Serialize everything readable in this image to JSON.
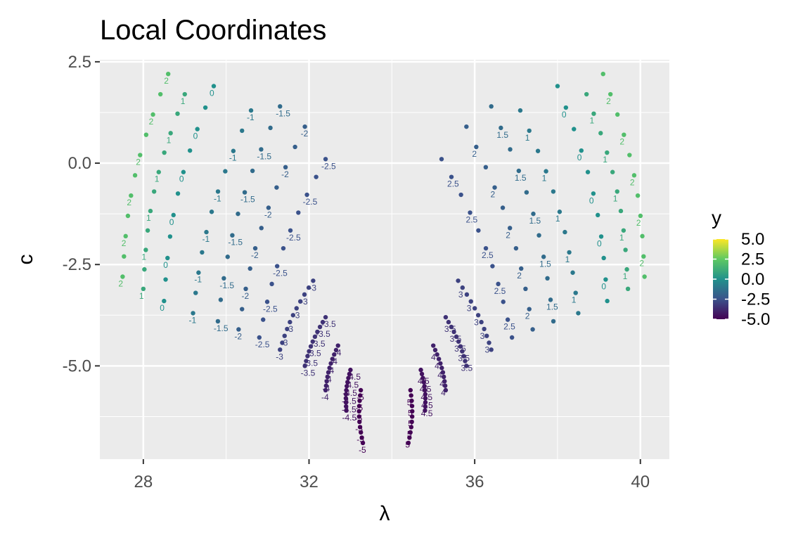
{
  "chart_data": {
    "type": "scatter",
    "title": "Local Coordinates",
    "xlabel": "λ",
    "ylabel": "c",
    "xlim": [
      26.95,
      40.7
    ],
    "ylim": [
      -7.3,
      2.55
    ],
    "x_ticks": [
      28,
      32,
      36,
      40
    ],
    "y_ticks": [
      2.5,
      0.0,
      -2.5,
      -5.0
    ],
    "x_tick_labels": [
      "28",
      "32",
      "36",
      "40"
    ],
    "y_tick_labels": [
      "2.5",
      "0.0",
      "-2.5",
      "-5.0"
    ],
    "grid": true,
    "legend": {
      "title": "y",
      "placement": "right",
      "min": -5.0,
      "max": 5.0,
      "tick_values": [
        5.0,
        2.5,
        0.0,
        -2.5,
        -5.0
      ],
      "tick_labels": [
        "5.0",
        "2.5",
        "0.0",
        "-2.5",
        "-5.0"
      ]
    },
    "colormap": [
      "#440154",
      "#3b528b",
      "#21918c",
      "#5ec962",
      "#fde725"
    ],
    "series": [
      {
        "y": -5,
        "left_top": [
          33.25,
          -5.6
        ],
        "left_bottom": [
          33.3,
          -6.9
        ],
        "right_top": [
          34.45,
          -5.6
        ],
        "right_bottom": [
          34.4,
          -6.9
        ],
        "labels": [
          "-5",
          "5"
        ]
      },
      {
        "y": -4.5,
        "left_top": [
          33.0,
          -5.1
        ],
        "left_bottom": [
          32.9,
          -6.1
        ],
        "right_top": [
          34.7,
          -5.1
        ],
        "right_bottom": [
          34.8,
          -6.1
        ],
        "labels": [
          "-4.5",
          "4.5"
        ]
      },
      {
        "y": -4,
        "left_top": [
          32.7,
          -4.5
        ],
        "left_bottom": [
          32.4,
          -5.6
        ],
        "right_top": [
          35.0,
          -4.5
        ],
        "right_bottom": [
          35.3,
          -5.6
        ],
        "labels": [
          "-4",
          "4"
        ]
      },
      {
        "y": -3.5,
        "left_top": [
          32.4,
          -3.8
        ],
        "left_bottom": [
          31.9,
          -5.0
        ],
        "right_top": [
          35.3,
          -3.8
        ],
        "right_bottom": [
          35.8,
          -5.0
        ],
        "labels": [
          "-3.5",
          "3.5"
        ]
      },
      {
        "y": -3,
        "left_top": [
          32.1,
          -2.9
        ],
        "left_bottom": [
          31.3,
          -4.6
        ],
        "right_top": [
          35.6,
          -2.9
        ],
        "right_bottom": [
          36.4,
          -4.6
        ],
        "labels": [
          "-3",
          "3"
        ]
      },
      {
        "y": -2.5,
        "left_top": [
          32.4,
          0.1
        ],
        "left_bottom": [
          30.8,
          -4.3
        ],
        "right_top": [
          35.2,
          0.1
        ],
        "right_bottom": [
          36.9,
          -4.3
        ],
        "labels": [
          "-2.5",
          "2.5"
        ]
      },
      {
        "y": -2,
        "left_top": [
          31.9,
          0.9
        ],
        "left_bottom": [
          30.3,
          -4.1
        ],
        "right_top": [
          35.8,
          0.9
        ],
        "right_bottom": [
          37.4,
          -4.1
        ],
        "labels": [
          "-2",
          "2"
        ]
      },
      {
        "y": -1.5,
        "left_top": [
          31.3,
          1.4
        ],
        "left_bottom": [
          29.8,
          -3.9
        ],
        "right_top": [
          36.4,
          1.4
        ],
        "right_bottom": [
          37.9,
          -3.9
        ],
        "labels": [
          "-1.5",
          "1.5"
        ]
      },
      {
        "y": -1,
        "left_top": [
          30.6,
          1.3
        ],
        "left_bottom": [
          29.2,
          -3.7
        ],
        "right_top": [
          37.1,
          1.3
        ],
        "right_bottom": [
          38.5,
          -3.7
        ],
        "labels": [
          "-1",
          "1"
        ]
      },
      {
        "y": 0,
        "left_top": [
          29.7,
          1.9
        ],
        "left_bottom": [
          28.5,
          -3.4
        ],
        "right_top": [
          38.0,
          1.9
        ],
        "right_bottom": [
          39.2,
          -3.4
        ],
        "labels": [
          "0",
          "0"
        ]
      },
      {
        "y": 1,
        "left_top": [
          29.0,
          1.7
        ],
        "left_bottom": [
          28.0,
          -3.1
        ],
        "right_top": [
          38.7,
          1.7
        ],
        "right_bottom": [
          39.7,
          -3.1
        ],
        "labels": [
          "1",
          "1"
        ]
      },
      {
        "y": 2,
        "left_top": [
          28.6,
          2.2
        ],
        "left_bottom": [
          27.5,
          -2.8
        ],
        "right_top": [
          39.1,
          2.2
        ],
        "right_bottom": [
          40.1,
          -2.8
        ],
        "labels": [
          "2",
          "2"
        ]
      }
    ]
  }
}
